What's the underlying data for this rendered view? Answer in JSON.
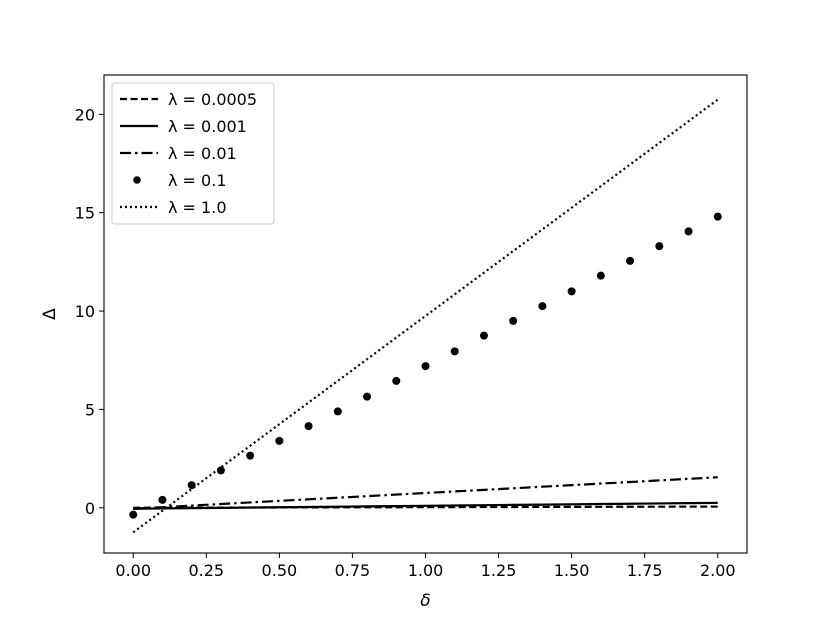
{
  "chart_data": {
    "type": "line",
    "xlabel": "δ",
    "ylabel": "Δ",
    "xlim": [
      -0.1,
      2.1
    ],
    "ylim": [
      -2.3,
      22.0
    ],
    "xticks": [
      0.0,
      0.25,
      0.5,
      0.75,
      1.0,
      1.25,
      1.5,
      1.75,
      2.0
    ],
    "xtick_labels": [
      "0.00",
      "0.25",
      "0.50",
      "0.75",
      "1.00",
      "1.25",
      "1.50",
      "1.75",
      "2.00"
    ],
    "yticks": [
      0,
      5,
      10,
      15,
      20
    ],
    "ytick_labels": [
      "0",
      "5",
      "10",
      "15",
      "20"
    ],
    "grid": false,
    "legend_position": "top-left",
    "x": [
      0.0,
      0.1,
      0.2,
      0.3,
      0.4,
      0.5,
      0.6,
      0.7,
      0.8,
      0.9,
      1.0,
      1.1,
      1.2,
      1.3,
      1.4,
      1.5,
      1.6,
      1.7,
      1.8,
      1.9,
      2.0
    ],
    "series": [
      {
        "name": "λ = 0.0005",
        "style": "dashed",
        "values": [
          0.0,
          0.003,
          0.006,
          0.009,
          0.012,
          0.015,
          0.018,
          0.021,
          0.024,
          0.027,
          0.03,
          0.033,
          0.036,
          0.039,
          0.042,
          0.045,
          0.048,
          0.051,
          0.054,
          0.057,
          0.06
        ]
      },
      {
        "name": "λ = 0.001",
        "style": "solid",
        "values": [
          -0.05,
          -0.035,
          -0.02,
          -0.005,
          0.01,
          0.025,
          0.04,
          0.055,
          0.07,
          0.085,
          0.1,
          0.115,
          0.13,
          0.145,
          0.16,
          0.175,
          0.19,
          0.205,
          0.22,
          0.235,
          0.25
        ]
      },
      {
        "name": "λ = 0.01",
        "style": "dashdot",
        "values": [
          -0.05,
          0.03,
          0.11,
          0.19,
          0.27,
          0.35,
          0.43,
          0.51,
          0.59,
          0.67,
          0.75,
          0.83,
          0.91,
          0.99,
          1.07,
          1.15,
          1.23,
          1.31,
          1.39,
          1.47,
          1.55
        ]
      },
      {
        "name": "λ = 0.1",
        "style": "dots",
        "values": [
          -0.35,
          0.4,
          1.15,
          1.9,
          2.65,
          3.4,
          4.15,
          4.9,
          5.65,
          6.45,
          7.2,
          7.95,
          8.75,
          9.5,
          10.25,
          11.0,
          11.8,
          12.55,
          13.3,
          14.05,
          14.8
        ]
      },
      {
        "name": "λ = 1.0",
        "style": "dotted",
        "values": [
          -1.25,
          -0.15,
          0.95,
          2.05,
          3.15,
          4.25,
          5.35,
          6.45,
          7.55,
          8.65,
          9.75,
          10.85,
          11.95,
          13.05,
          14.15,
          15.25,
          16.35,
          17.45,
          18.55,
          19.65,
          20.75
        ]
      }
    ]
  }
}
